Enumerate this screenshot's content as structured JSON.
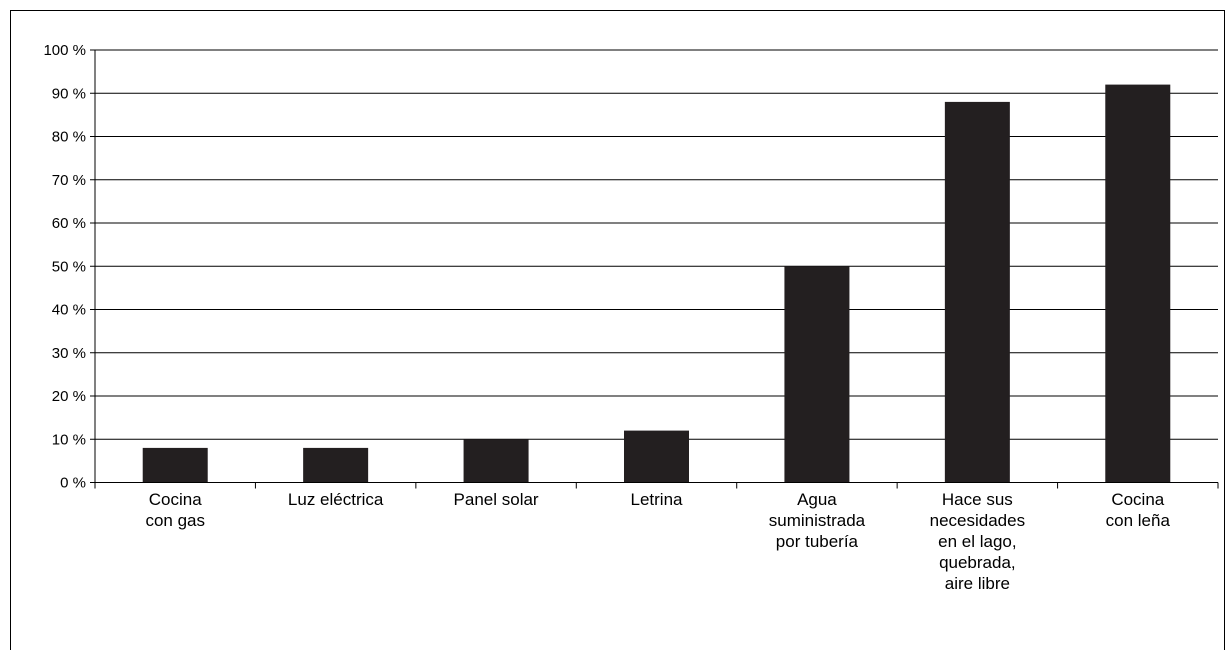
{
  "chart_data": {
    "type": "bar",
    "categories": [
      [
        "Cocina",
        "con gas"
      ],
      [
        "Luz eléctrica"
      ],
      [
        "Panel solar"
      ],
      [
        "Letrina"
      ],
      [
        "Agua",
        "suministrada",
        "por tubería"
      ],
      [
        "Hace sus",
        "necesidades",
        "en el lago,",
        "quebrada,",
        "aire libre"
      ],
      [
        "Cocina",
        "con leña"
      ]
    ],
    "values": [
      8,
      8,
      10,
      12,
      50,
      88,
      92
    ],
    "ylim": [
      0,
      100
    ],
    "yticks": [
      "0 %",
      "10 %",
      "20 %",
      "30 %",
      "40 %",
      "50 %",
      "60 %",
      "70 %",
      "80 %",
      "90 %",
      "100 %"
    ],
    "grid": true,
    "bar_color": "#231f20",
    "title": "",
    "xlabel": "",
    "ylabel": ""
  }
}
